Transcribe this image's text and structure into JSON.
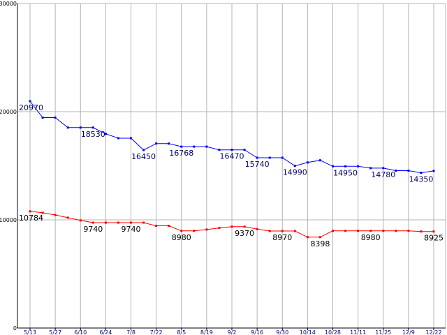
{
  "chart_data": {
    "type": "line",
    "title": "",
    "xlabel": "",
    "ylabel": "",
    "ylim": [
      0,
      30000
    ],
    "grid": true,
    "y_ticks": [
      0,
      10000,
      20000,
      30000
    ],
    "y_tick_labels": [
      "0",
      "10000",
      "20000",
      "30000"
    ],
    "x_tick_labels": [
      "5/13",
      "5/27",
      "6/10",
      "6/24",
      "7/8",
      "7/22",
      "8/5",
      "8/19",
      "9/2",
      "9/16",
      "9/30",
      "10/14",
      "10/28",
      "11/11",
      "11/25",
      "12/9",
      "12/22"
    ],
    "x_tick_index": [
      0,
      2,
      4,
      6,
      8,
      10,
      12,
      14,
      16,
      18,
      20,
      22,
      24,
      26,
      28,
      30,
      32
    ],
    "series": [
      {
        "color": "#0000ff",
        "values": [
          20970,
          19450,
          19450,
          18530,
          18530,
          18530,
          17950,
          17550,
          17550,
          16450,
          17050,
          17050,
          16768,
          16768,
          16768,
          16470,
          16470,
          16470,
          15740,
          15740,
          15740,
          14990,
          15300,
          15500,
          14950,
          14950,
          14950,
          14780,
          14780,
          14550,
          14550,
          14350,
          14520
        ],
        "labels": [
          {
            "i": 0,
            "text": "20970"
          },
          {
            "i": 5,
            "text": "18530"
          },
          {
            "i": 9,
            "text": "16450"
          },
          {
            "i": 12,
            "text": "16768"
          },
          {
            "i": 16,
            "text": "16470"
          },
          {
            "i": 18,
            "text": "15740"
          },
          {
            "i": 21,
            "text": "14990"
          },
          {
            "i": 25,
            "text": "14950"
          },
          {
            "i": 28,
            "text": "14780"
          },
          {
            "i": 31,
            "text": "14350"
          }
        ]
      },
      {
        "color": "#ff0000",
        "values": [
          10784,
          10650,
          10450,
          10200,
          9950,
          9740,
          9740,
          9740,
          9740,
          9740,
          9450,
          9450,
          8980,
          8980,
          9100,
          9250,
          9370,
          9370,
          9150,
          8970,
          8970,
          8970,
          8398,
          8398,
          8980,
          8980,
          8980,
          8980,
          8980,
          8980,
          8980,
          8925,
          8925
        ],
        "labels": [
          {
            "i": 0,
            "text": "10784"
          },
          {
            "i": 5,
            "text": "9740"
          },
          {
            "i": 8,
            "text": "9740"
          },
          {
            "i": 12,
            "text": "8980"
          },
          {
            "i": 17,
            "text": "9370"
          },
          {
            "i": 20,
            "text": "8970"
          },
          {
            "i": 23,
            "text": "8398"
          },
          {
            "i": 27,
            "text": "8980"
          },
          {
            "i": 32,
            "text": "8925"
          }
        ]
      }
    ]
  }
}
